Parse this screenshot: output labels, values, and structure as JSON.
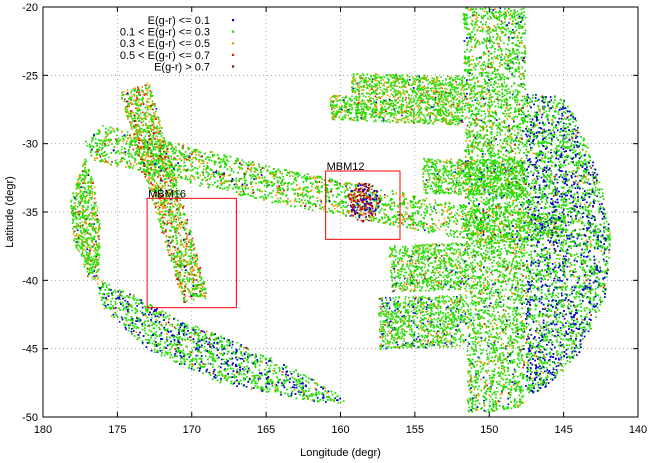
{
  "chart_data": {
    "type": "scatter",
    "title": "",
    "xlabel": "Longitude (degr)",
    "ylabel": "Latitude (degr)",
    "xlim": [
      180,
      140
    ],
    "ylim": [
      -50,
      -20
    ],
    "x_reversed": true,
    "xticks": [
      180,
      175,
      170,
      165,
      160,
      155,
      150,
      145,
      140
    ],
    "yticks": [
      -50,
      -45,
      -40,
      -35,
      -30,
      -25,
      -20
    ],
    "grid": true,
    "grid_style": "dotted",
    "legend_position": "top-left",
    "series": [
      {
        "name": "E(g-r) <= 0.1",
        "color": "#0000cc"
      },
      {
        "name": "0.1 < E(g-r) <= 0.3",
        "color": "#22dd00"
      },
      {
        "name": "0.3 < E(g-r) <= 0.5",
        "color": "#f0a000"
      },
      {
        "name": "0.5 < E(g-r) <= 0.7",
        "color": "#e02000"
      },
      {
        "name": "E(g-r) > 0.7",
        "color": "#b00000"
      }
    ],
    "regions": [
      {
        "label": "MBM12",
        "lon": [
          161,
          156
        ],
        "lat": [
          -37,
          -32
        ],
        "color": "#ff0000"
      },
      {
        "label": "MBM16",
        "lon": [
          173,
          167
        ],
        "lat": [
          -42,
          -34
        ],
        "color": "#ff0000"
      }
    ],
    "footprints": [
      {
        "poly": [
          [
            177.2,
            -29.8
          ],
          [
            176.0,
            -28.6
          ],
          [
            164.0,
            -31.8
          ],
          [
            150.0,
            -34.8
          ],
          [
            145.0,
            -35.2
          ],
          [
            144.7,
            -36.7
          ],
          [
            150.0,
            -37.3
          ],
          [
            164.0,
            -34.4
          ],
          [
            176.8,
            -31.2
          ]
        ],
        "green": 0.78,
        "orange": 0.16,
        "red": 0.03,
        "blue": 0.03,
        "density": 1.3
      },
      {
        "poly": [
          [
            174.9,
            -26.2
          ],
          [
            172.9,
            -25.5
          ],
          [
            168.9,
            -41.2
          ],
          [
            170.6,
            -41.6
          ]
        ],
        "green": 0.55,
        "orange": 0.27,
        "red": 0.16,
        "blue": 0.02,
        "density": 1.3
      },
      {
        "poly": [
          [
            151.8,
            -20.0
          ],
          [
            147.6,
            -20.0
          ],
          [
            147.7,
            -49.2
          ],
          [
            151.5,
            -49.8
          ]
        ],
        "green": 0.82,
        "orange": 0.12,
        "red": 0.02,
        "blue": 0.04,
        "density": 1.2
      },
      {
        "poly": [
          [
            159.2,
            -24.8
          ],
          [
            151.8,
            -25.0
          ],
          [
            151.7,
            -26.6
          ],
          [
            159.4,
            -26.3
          ]
        ],
        "green": 0.72,
        "orange": 0.22,
        "red": 0.04,
        "blue": 0.02,
        "density": 1.2
      },
      {
        "poly": [
          [
            160.8,
            -26.4
          ],
          [
            151.8,
            -26.6
          ],
          [
            151.8,
            -28.6
          ],
          [
            160.6,
            -28.2
          ]
        ],
        "green": 0.75,
        "orange": 0.2,
        "red": 0.03,
        "blue": 0.02,
        "density": 1.2
      },
      {
        "poly": [
          [
            147.6,
            -26.3
          ],
          [
            145.2,
            -26.5
          ],
          [
            144.2,
            -28.0
          ],
          [
            143.5,
            -30.0
          ],
          [
            142.5,
            -33.0
          ],
          [
            141.8,
            -37.0
          ],
          [
            142.2,
            -41.0
          ],
          [
            143.8,
            -45.0
          ],
          [
            146.0,
            -47.6
          ],
          [
            147.6,
            -48.5
          ]
        ],
        "green": 0.62,
        "orange": 0.04,
        "red": 0.01,
        "blue": 0.33,
        "density": 1.4
      },
      {
        "poly": [
          [
            154.5,
            -31.0
          ],
          [
            147.6,
            -31.2
          ],
          [
            147.6,
            -33.8
          ],
          [
            154.5,
            -33.6
          ]
        ],
        "green": 0.8,
        "orange": 0.14,
        "red": 0.02,
        "blue": 0.04,
        "density": 1.0
      },
      {
        "poly": [
          [
            156.8,
            -37.4
          ],
          [
            151.6,
            -37.2
          ],
          [
            151.6,
            -40.6
          ],
          [
            156.6,
            -40.8
          ]
        ],
        "green": 0.8,
        "orange": 0.14,
        "red": 0.02,
        "blue": 0.04,
        "density": 1.0
      },
      {
        "poly": [
          [
            157.5,
            -41.2
          ],
          [
            151.6,
            -41.0
          ],
          [
            151.6,
            -44.8
          ],
          [
            157.4,
            -45.0
          ]
        ],
        "green": 0.78,
        "orange": 0.1,
        "red": 0.02,
        "blue": 0.1,
        "density": 1.0
      },
      {
        "poly": [
          [
            176.5,
            -39.8
          ],
          [
            174.0,
            -41.0
          ],
          [
            171.0,
            -42.8
          ],
          [
            167.0,
            -44.5
          ],
          [
            163.0,
            -46.5
          ],
          [
            160.0,
            -48.3
          ],
          [
            159.5,
            -49.0
          ],
          [
            162.0,
            -48.8
          ],
          [
            168.0,
            -47.5
          ],
          [
            173.0,
            -45.0
          ],
          [
            176.0,
            -42.0
          ]
        ],
        "green": 0.68,
        "orange": 0.05,
        "red": 0.01,
        "blue": 0.26,
        "density": 1.3
      },
      {
        "poly": [
          [
            177.2,
            -31.0
          ],
          [
            178.2,
            -34.0
          ],
          [
            178.0,
            -37.0
          ],
          [
            177.0,
            -39.8
          ],
          [
            176.3,
            -40.0
          ],
          [
            176.2,
            -36.0
          ],
          [
            176.6,
            -33.0
          ]
        ],
        "green": 0.72,
        "orange": 0.2,
        "red": 0.05,
        "blue": 0.03,
        "density": 1.3
      }
    ],
    "hotspots": [
      {
        "lon": 158.5,
        "lat": -34.2,
        "r": 1.1,
        "mix": "dense-red-blue"
      }
    ]
  }
}
